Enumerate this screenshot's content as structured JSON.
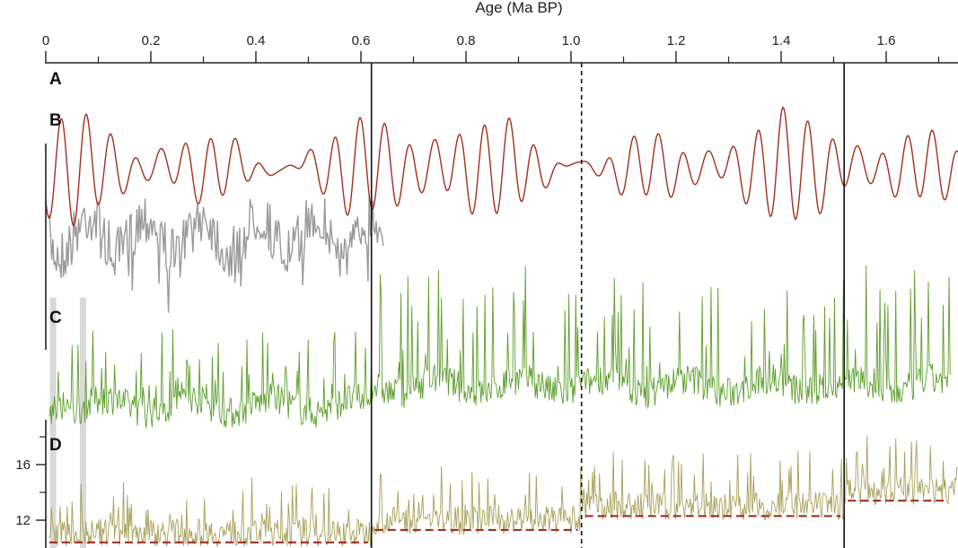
{
  "chart_data": {
    "type": "line",
    "title": "",
    "xlabel": "Age (Ma BP)",
    "xlim": [
      0,
      1.72
    ],
    "x_ticks": [
      {
        "value": 0,
        "label": "0"
      },
      {
        "value": 0.2,
        "label": "0.2"
      },
      {
        "value": 0.4,
        "label": "0.4"
      },
      {
        "value": 0.6,
        "label": "0.6"
      },
      {
        "value": 0.8,
        "label": "0.8"
      },
      {
        "value": 1.0,
        "label": "1.0"
      },
      {
        "value": 1.2,
        "label": "1.2"
      },
      {
        "value": 1.4,
        "label": "1.4"
      },
      {
        "value": 1.6,
        "label": "1.6"
      }
    ],
    "panels": [
      "A",
      "B",
      "C",
      "D"
    ],
    "boundaries": [
      {
        "age": 0.62,
        "style": "solid"
      },
      {
        "age": 1.02,
        "style": "dashed"
      },
      {
        "age": 1.52,
        "style": "solid"
      }
    ],
    "highlight_bands": [
      {
        "age": 0.013
      },
      {
        "age": 0.07
      }
    ],
    "colors": {
      "orbital": "#a0301e",
      "gray": "#9a9a9a",
      "green": "#5c9e2b",
      "olive": "#a8a05a",
      "mean": "#9b2218",
      "axis": "#222222",
      "band": "#d9d9d9"
    },
    "panel_d": {
      "y_ticks": [
        {
          "value": 12,
          "label": "12"
        },
        {
          "value": 16,
          "label": "16"
        }
      ],
      "ylim": [
        10,
        18
      ],
      "mean_segments": [
        {
          "x0": 0,
          "x1": 0.62,
          "y": 10.4
        },
        {
          "x0": 0.62,
          "x1": 1.02,
          "y": 11.3
        },
        {
          "x0": 1.02,
          "x1": 1.52,
          "y": 12.3
        },
        {
          "x0": 1.52,
          "x1": 1.72,
          "y": 13.4
        }
      ]
    }
  }
}
